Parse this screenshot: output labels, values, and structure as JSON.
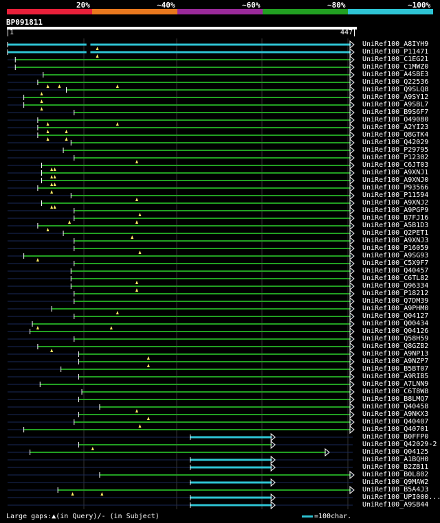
{
  "query": {
    "id": "BP091811",
    "start": "1",
    "end": "447",
    "length": 447
  },
  "legend": {
    "labels": [
      "20%",
      "~40%",
      "~60%",
      "~80%",
      "~100%"
    ],
    "colors": [
      "#e8203a",
      "#e8781e",
      "#9a2a9a",
      "#22a022",
      "#2ec4d4"
    ]
  },
  "footer": {
    "gaps_text": "Large gaps:▲(in Query)/- (in Subject)",
    "scale_text": "=100char."
  },
  "hits": [
    {
      "name": "UniRef100_A8IYH9",
      "s": 1,
      "e": 447,
      "c": 4,
      "g": [
        117
      ],
      "dash": [
        103,
        108
      ]
    },
    {
      "name": "UniRef100_P11471",
      "s": 1,
      "e": 447,
      "c": 4,
      "g": [
        117
      ],
      "dash": [
        103,
        108
      ]
    },
    {
      "name": "UniRef100_C1EG21",
      "s": 11,
      "e": 447,
      "c": 3,
      "g": []
    },
    {
      "name": "UniRef100_C1MWZ0",
      "s": 11,
      "e": 447,
      "c": 3,
      "g": []
    },
    {
      "name": "UniRef100_A4SBE3",
      "s": 47,
      "e": 447,
      "c": 3,
      "g": []
    },
    {
      "name": "UniRef100_Q22536",
      "s": 40,
      "e": 447,
      "c": 3,
      "g": [
        53,
        68,
        143
      ]
    },
    {
      "name": "UniRef100_Q9SLQ8",
      "s": 77,
      "e": 447,
      "c": 3,
      "g": [
        45
      ]
    },
    {
      "name": "UniRef100_A9SY12",
      "s": 22,
      "e": 447,
      "c": 3,
      "g": [
        45
      ]
    },
    {
      "name": "UniRef100_A9SBL7",
      "s": 22,
      "e": 447,
      "c": 3,
      "g": [
        45
      ]
    },
    {
      "name": "UniRef100_B9S6F7",
      "s": 87,
      "e": 447,
      "c": 3,
      "g": []
    },
    {
      "name": "UniRef100_O49080",
      "s": 40,
      "e": 447,
      "c": 3,
      "g": [
        53,
        143
      ]
    },
    {
      "name": "UniRef100_A2YI23",
      "s": 40,
      "e": 447,
      "c": 3,
      "g": [
        53,
        77
      ]
    },
    {
      "name": "UniRef100_Q8GTK4",
      "s": 40,
      "e": 447,
      "c": 3,
      "g": [
        53,
        77
      ]
    },
    {
      "name": "UniRef100_Q42029",
      "s": 83,
      "e": 447,
      "c": 3,
      "g": []
    },
    {
      "name": "UniRef100_P29795",
      "s": 73,
      "e": 447,
      "c": 3,
      "g": []
    },
    {
      "name": "UniRef100_P12302",
      "s": 87,
      "e": 447,
      "c": 3,
      "g": [
        168
      ]
    },
    {
      "name": "UniRef100_C6JT03",
      "s": 45,
      "e": 447,
      "c": 3,
      "g": [
        58,
        62
      ]
    },
    {
      "name": "UniRef100_A9XNJ1",
      "s": 45,
      "e": 447,
      "c": 3,
      "g": [
        58,
        62
      ]
    },
    {
      "name": "UniRef100_A9XNJ0",
      "s": 45,
      "e": 447,
      "c": 3,
      "g": [
        58,
        62
      ]
    },
    {
      "name": "UniRef100_P93566",
      "s": 40,
      "e": 447,
      "c": 3,
      "g": [
        58
      ]
    },
    {
      "name": "UniRef100_P11594",
      "s": 83,
      "e": 447,
      "c": 3,
      "g": [
        168
      ]
    },
    {
      "name": "UniRef100_A9XNJ2",
      "s": 45,
      "e": 447,
      "c": 3,
      "g": [
        58,
        62
      ]
    },
    {
      "name": "UniRef100_A9PGP9",
      "s": 87,
      "e": 447,
      "c": 3,
      "g": [
        172
      ]
    },
    {
      "name": "UniRef100_B7FJ16",
      "s": 87,
      "e": 447,
      "c": 3,
      "g": [
        81,
        168
      ]
    },
    {
      "name": "UniRef100_A5B1D3",
      "s": 40,
      "e": 447,
      "c": 3,
      "g": [
        53
      ]
    },
    {
      "name": "UniRef100_Q2PET1",
      "s": 73,
      "e": 447,
      "c": 3,
      "g": [
        162
      ]
    },
    {
      "name": "UniRef100_A9XNJ3",
      "s": 87,
      "e": 447,
      "c": 3,
      "g": []
    },
    {
      "name": "UniRef100_P16059",
      "s": 87,
      "e": 447,
      "c": 3,
      "g": [
        172
      ]
    },
    {
      "name": "UniRef100_A9SG93",
      "s": 22,
      "e": 447,
      "c": 3,
      "g": [
        40
      ]
    },
    {
      "name": "UniRef100_C5X9F7",
      "s": 87,
      "e": 447,
      "c": 3,
      "g": []
    },
    {
      "name": "UniRef100_Q40457",
      "s": 83,
      "e": 447,
      "c": 3,
      "g": []
    },
    {
      "name": "UniRef100_C6TL82",
      "s": 83,
      "e": 447,
      "c": 3,
      "g": [
        168
      ]
    },
    {
      "name": "UniRef100_Q96334",
      "s": 83,
      "e": 447,
      "c": 3,
      "g": [
        168
      ]
    },
    {
      "name": "UniRef100_P18212",
      "s": 87,
      "e": 447,
      "c": 3,
      "g": []
    },
    {
      "name": "UniRef100_Q7DM39",
      "s": 87,
      "e": 447,
      "c": 3,
      "g": []
    },
    {
      "name": "UniRef100_A9PHM0",
      "s": 58,
      "e": 447,
      "c": 3,
      "g": [
        143
      ]
    },
    {
      "name": "UniRef100_Q04127",
      "s": 87,
      "e": 447,
      "c": 3,
      "g": []
    },
    {
      "name": "UniRef100_Q00434",
      "s": 33,
      "e": 447,
      "c": 3,
      "g": [
        40,
        135
      ]
    },
    {
      "name": "UniRef100_Q04126",
      "s": 30,
      "e": 447,
      "c": 3,
      "g": []
    },
    {
      "name": "UniRef100_Q58H59",
      "s": 87,
      "e": 447,
      "c": 3,
      "g": []
    },
    {
      "name": "UniRef100_Q8GZB2",
      "s": 40,
      "e": 447,
      "c": 3,
      "g": [
        58
      ]
    },
    {
      "name": "UniRef100_A9NP13",
      "s": 93,
      "e": 447,
      "c": 3,
      "g": [
        183
      ]
    },
    {
      "name": "UniRef100_A9NZP7",
      "s": 93,
      "e": 447,
      "c": 3,
      "g": [
        183
      ]
    },
    {
      "name": "UniRef100_B5BT07",
      "s": 70,
      "e": 447,
      "c": 3,
      "g": []
    },
    {
      "name": "UniRef100_A9RIB5",
      "s": 93,
      "e": 447,
      "c": 3,
      "g": []
    },
    {
      "name": "UniRef100_A7LNN9",
      "s": 43,
      "e": 447,
      "c": 3,
      "g": []
    },
    {
      "name": "UniRef100_C6T8W8",
      "s": 97,
      "e": 447,
      "c": 3,
      "g": []
    },
    {
      "name": "UniRef100_B8LMQ7",
      "s": 93,
      "e": 447,
      "c": 3,
      "g": []
    },
    {
      "name": "UniRef100_Q40458",
      "s": 120,
      "e": 447,
      "c": 3,
      "g": [
        168
      ]
    },
    {
      "name": "UniRef100_A9NKX3",
      "s": 93,
      "e": 447,
      "c": 3,
      "g": [
        183
      ]
    },
    {
      "name": "UniRef100_Q40407",
      "s": 87,
      "e": 447,
      "c": 3,
      "g": [
        172
      ]
    },
    {
      "name": "UniRef100_Q40701",
      "s": 22,
      "e": 447,
      "c": 3,
      "g": []
    },
    {
      "name": "UniRef100_B0FFP0",
      "s": 237,
      "e": 345,
      "c": 4,
      "g": []
    },
    {
      "name": "UniRef100_Q42029-2",
      "s": 93,
      "e": 345,
      "c": 3,
      "g": [
        111
      ]
    },
    {
      "name": "UniRef100_Q04125",
      "s": 30,
      "e": 415,
      "c": 3,
      "g": []
    },
    {
      "name": "UniRef100_A1BQH0",
      "s": 237,
      "e": 345,
      "c": 4,
      "g": []
    },
    {
      "name": "UniRef100_B2ZB11",
      "s": 237,
      "e": 345,
      "c": 4,
      "g": []
    },
    {
      "name": "UniRef100_B0L802",
      "s": 120,
      "e": 447,
      "c": 3,
      "g": []
    },
    {
      "name": "UniRef100_Q9MAW2",
      "s": 237,
      "e": 345,
      "c": 4,
      "g": []
    },
    {
      "name": "UniRef100_B5A4J3",
      "s": 66,
      "e": 447,
      "c": 3,
      "g": [
        85,
        123
      ]
    },
    {
      "name": "UniRef100_UPI000...",
      "s": 237,
      "e": 345,
      "c": 4,
      "g": []
    },
    {
      "name": "UniRef100_A9SB44",
      "s": 237,
      "e": 345,
      "c": 4,
      "g": []
    }
  ]
}
